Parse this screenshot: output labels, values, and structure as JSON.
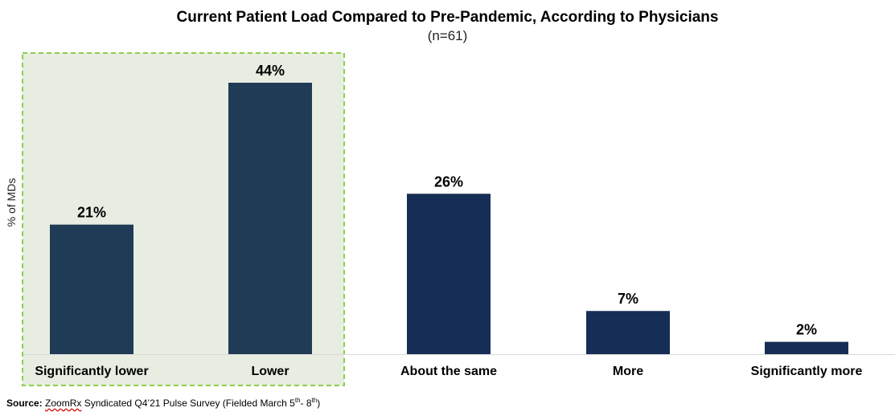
{
  "chart_data": {
    "type": "bar",
    "title": "Current Patient Load Compared to Pre-Pandemic, According to Physicians",
    "subtitle": "(n=61)",
    "ylabel": "% of MDs",
    "categories": [
      "Significantly lower",
      "Lower",
      "About the same",
      "More",
      "Significantly more"
    ],
    "values": [
      21,
      44,
      26,
      7,
      2
    ],
    "value_labels": [
      "21%",
      "44%",
      "26%",
      "7%",
      "2%"
    ],
    "ylim": [
      0,
      44
    ],
    "grid": false,
    "highlight": {
      "categories": [
        "Significantly lower",
        "Lower"
      ],
      "fill": "#e8ede1",
      "border": "#8ccf4d",
      "style": "dashed"
    },
    "colors": {
      "highlighted_bars": "#1f3b55",
      "other_bars": "#162e55",
      "axis": "#d9d9d9"
    }
  },
  "source": {
    "label": "Source:",
    "name": "ZoomRx",
    "text_a": " Syndicated Q4’21 Pulse Survey (Fielded March 5",
    "sup_a": "th",
    "text_b": "- 8",
    "sup_b": "th",
    "text_c": ")"
  }
}
